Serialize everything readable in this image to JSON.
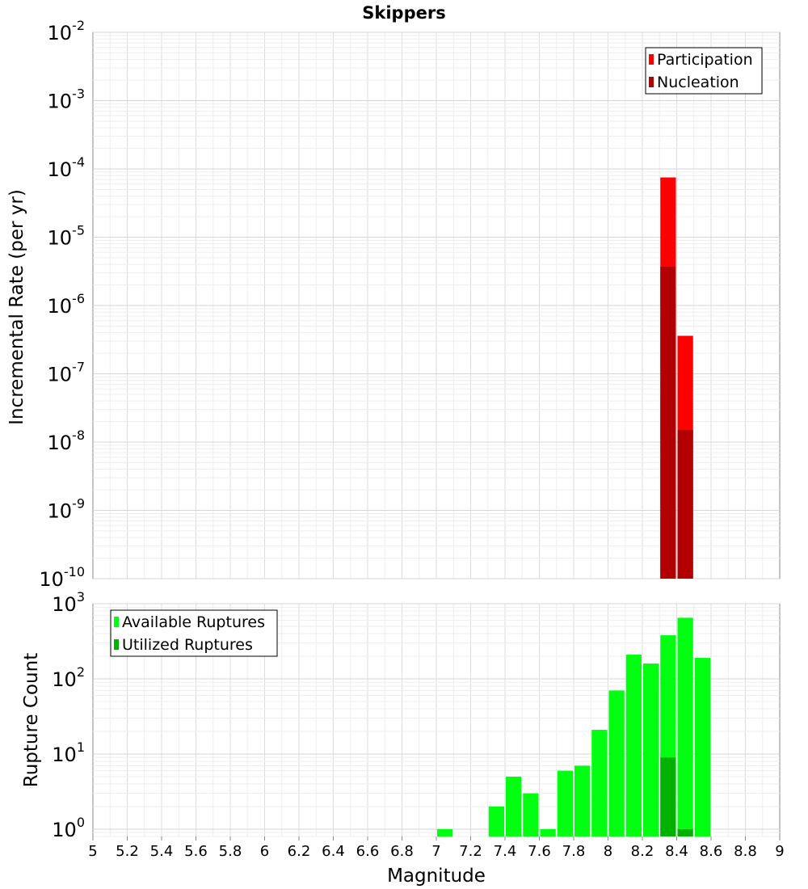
{
  "title": "Skippers",
  "chart_data": [
    {
      "type": "bar",
      "ylabel": "Incremental Rate (per yr)",
      "y_scale": "log",
      "ylim": [
        1e-10,
        0.01
      ],
      "xlim": [
        5,
        9
      ],
      "bin_width": 0.1,
      "grid": true,
      "legend_position": "top-right",
      "series": [
        {
          "name": "Participation",
          "color": "#ff0000",
          "x": [
            8.35,
            8.45
          ],
          "values": [
            7.5e-05,
            3.6e-07
          ]
        },
        {
          "name": "Nucleation",
          "color": "#b20000",
          "x": [
            8.35,
            8.45
          ],
          "values": [
            3.7e-06,
            1.5e-08
          ]
        }
      ]
    },
    {
      "type": "bar",
      "xlabel": "Magnitude",
      "ylabel": "Rupture Count",
      "y_scale": "log",
      "ylim": [
        0.8,
        1000
      ],
      "xlim": [
        5,
        9
      ],
      "bin_width": 0.1,
      "grid": true,
      "legend_position": "top-left",
      "x_ticks": [
        "5",
        "5.2",
        "5.4",
        "5.6",
        "5.8",
        "6",
        "6.2",
        "6.4",
        "6.6",
        "6.8",
        "7",
        "7.2",
        "7.4",
        "7.6",
        "7.8",
        "8",
        "8.2",
        "8.4",
        "8.6",
        "8.8",
        "9"
      ],
      "series": [
        {
          "name": "Available Ruptures",
          "color": "#00ff11",
          "x": [
            7.05,
            7.35,
            7.45,
            7.55,
            7.65,
            7.75,
            7.85,
            7.95,
            8.05,
            8.15,
            8.25,
            8.35,
            8.45,
            8.55
          ],
          "values": [
            1,
            2,
            5,
            3,
            1,
            6,
            7,
            21,
            70,
            210,
            160,
            380,
            650,
            190
          ]
        },
        {
          "name": "Utilized Ruptures",
          "color": "#00b200",
          "x": [
            8.35,
            8.45
          ],
          "values": [
            9,
            1
          ]
        }
      ]
    }
  ]
}
